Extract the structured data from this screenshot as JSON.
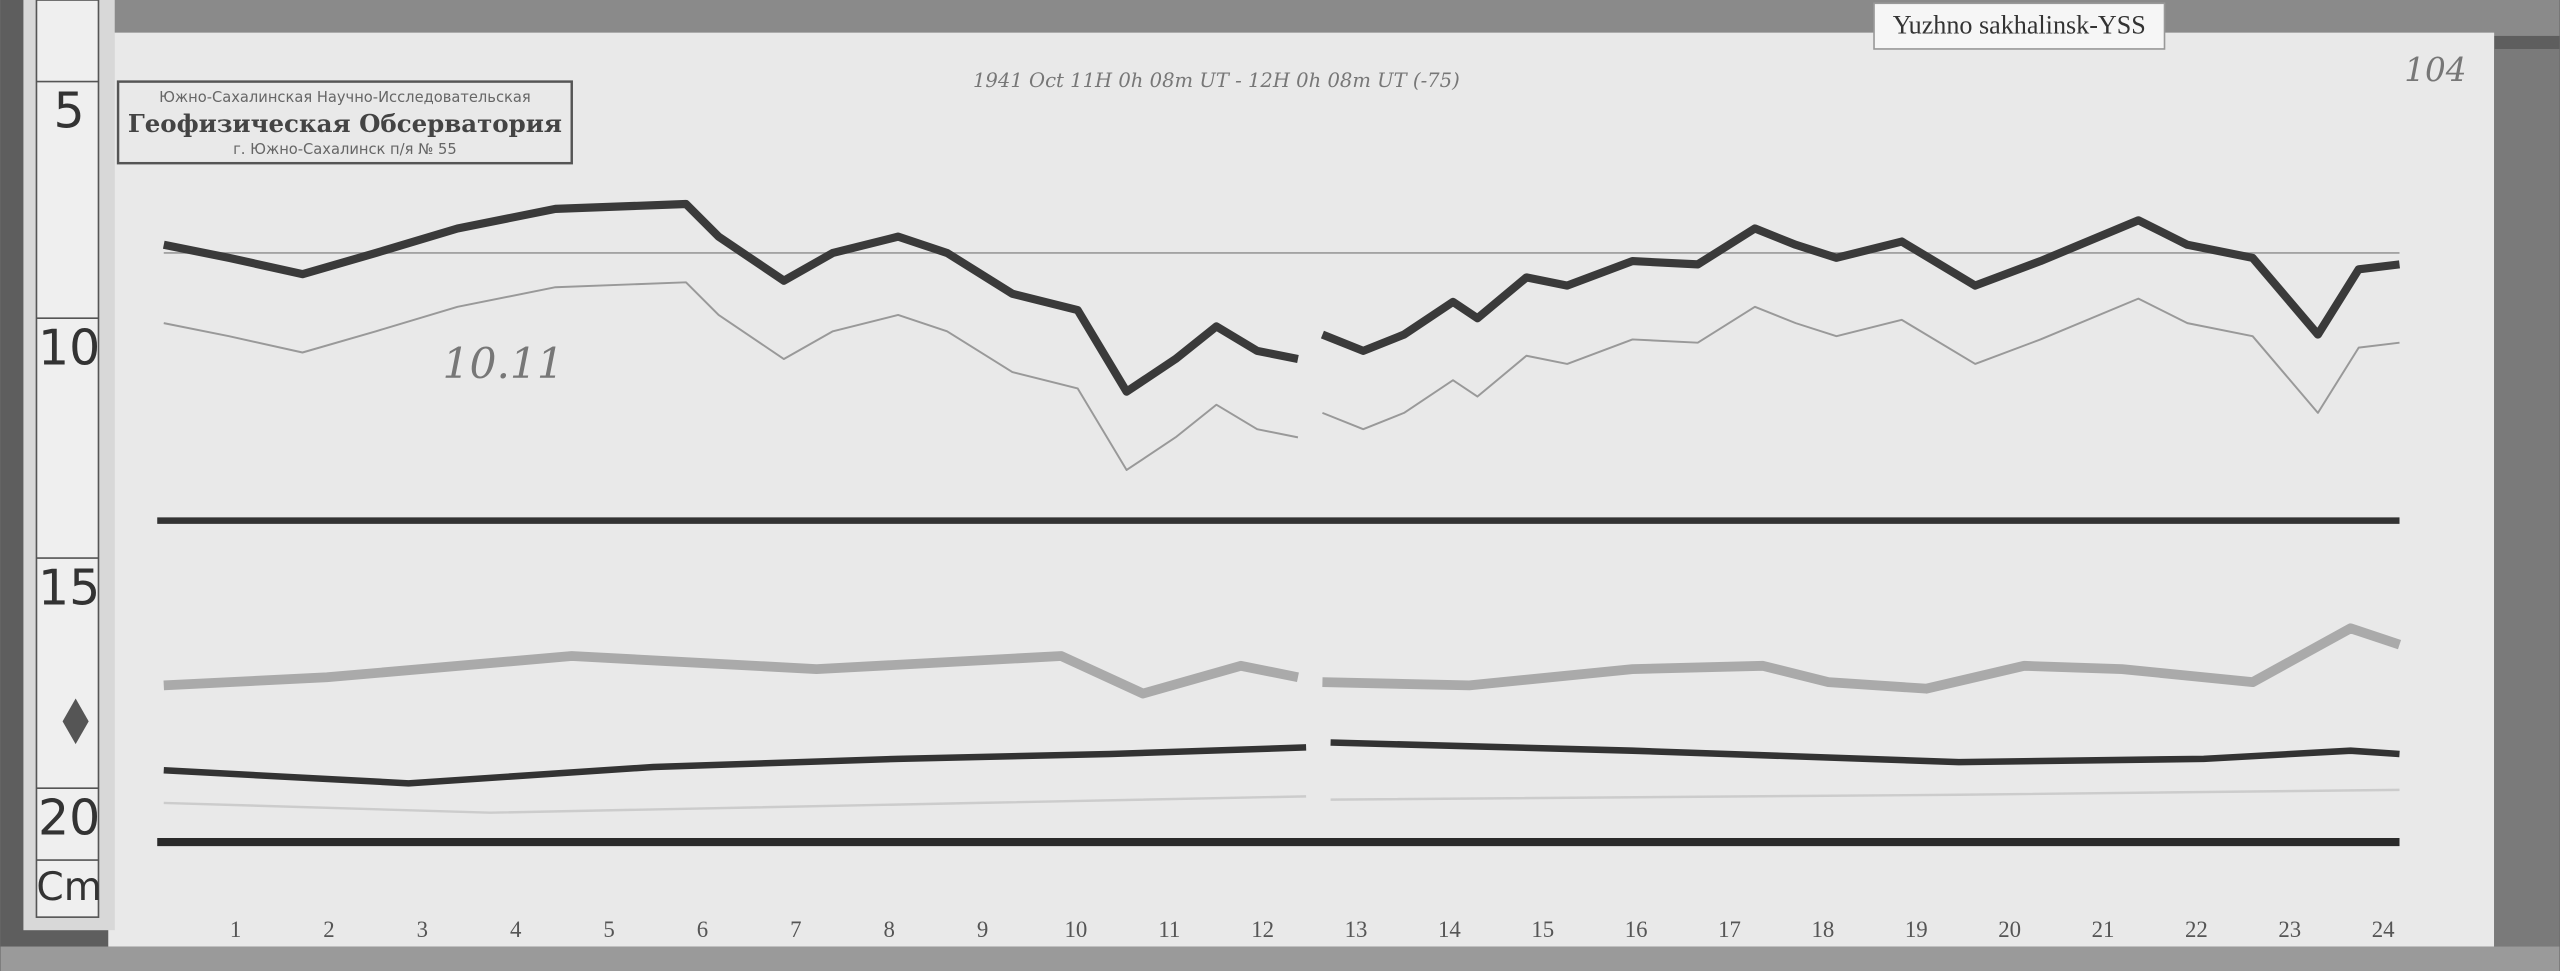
{
  "label_tag": "Yuzhno sakhalinsk-YSS",
  "ruler": {
    "marks": [
      "5",
      "10",
      "15",
      "20"
    ],
    "unit": "Cm"
  },
  "stamp": {
    "lines": [
      "Южно-Сахалинская Научно-Исследовательская",
      "Геофизическая Обсерватория",
      "г. Южно-Сахалинск п/я № 55"
    ]
  },
  "header": {
    "date_note": "1941 Oct 11H 0h 08m UT - 12H 0h 08m UT (-75)",
    "sheet_number": "104"
  },
  "annotation": "10.11",
  "hour_scale": [
    "1",
    "2",
    "3",
    "4",
    "5",
    "6",
    "7",
    "8",
    "9",
    "10",
    "11",
    "12",
    "13",
    "14",
    "15",
    "16",
    "17",
    "18",
    "19",
    "20",
    "21",
    "22",
    "23",
    "24"
  ]
}
